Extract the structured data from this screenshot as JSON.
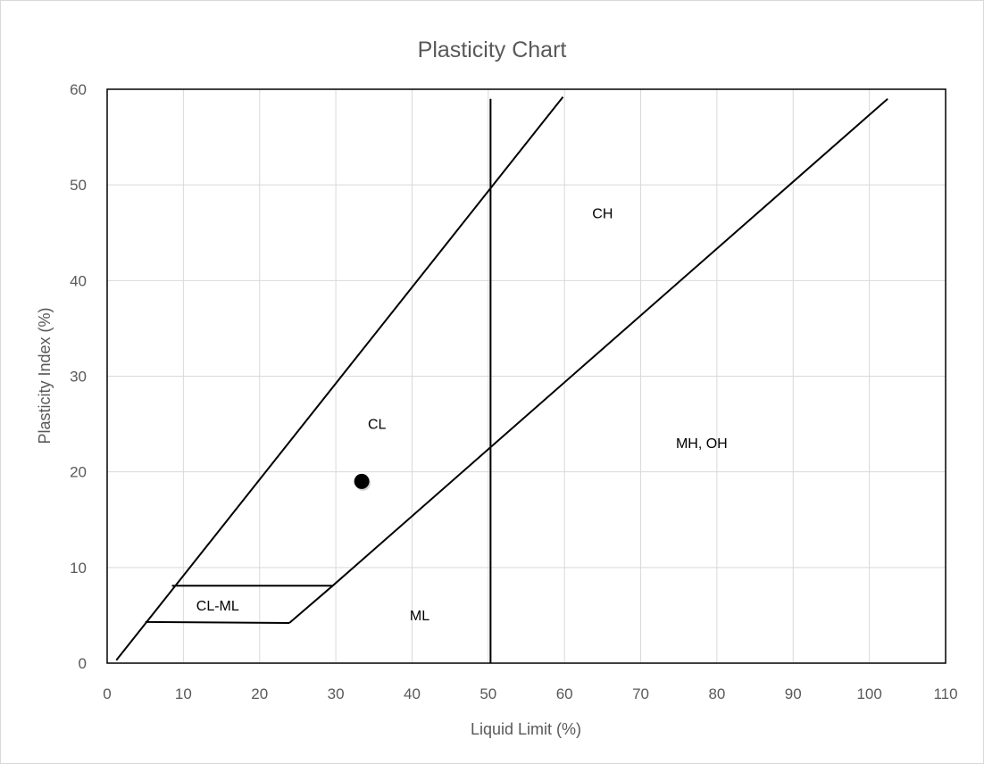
{
  "chart_data": {
    "type": "line",
    "title": "Plasticity Chart",
    "xlabel": "Liquid Limit (%)",
    "ylabel": "Plasticity Index (%)",
    "xlim": [
      0,
      110
    ],
    "ylim": [
      0,
      60
    ],
    "xticks": [
      0,
      10,
      20,
      30,
      40,
      50,
      60,
      70,
      80,
      90,
      100,
      110
    ],
    "yticks": [
      0,
      10,
      20,
      30,
      40,
      50,
      60
    ],
    "grid": true,
    "legend": "none",
    "series": [
      {
        "values": [
          [
            1.2,
            0.3
          ],
          [
            59.8,
            59.2
          ]
        ]
      },
      {
        "values": [
          [
            23.9,
            4.2
          ],
          [
            29.6,
            8.1
          ],
          [
            102.4,
            59
          ]
        ]
      },
      {
        "values": [
          [
            50.3,
            0
          ],
          [
            50.3,
            59
          ]
        ]
      },
      {
        "values": [
          [
            8.5,
            8.1
          ],
          [
            29.6,
            8.1
          ]
        ]
      },
      {
        "values": [
          [
            5.0,
            4.3
          ],
          [
            23.9,
            4.2
          ]
        ]
      }
    ],
    "point": {
      "x": 33.4,
      "y": 19
    },
    "annotations": [
      {
        "text": "CH",
        "x": 65,
        "y": 46.5
      },
      {
        "text": "CL",
        "x": 35.4,
        "y": 24.5
      },
      {
        "text": "MH, OH",
        "x": 78,
        "y": 22.5
      },
      {
        "text": "CL-ML",
        "x": 14.5,
        "y": 5.5
      },
      {
        "text": "ML",
        "x": 41,
        "y": 4.5
      }
    ]
  }
}
